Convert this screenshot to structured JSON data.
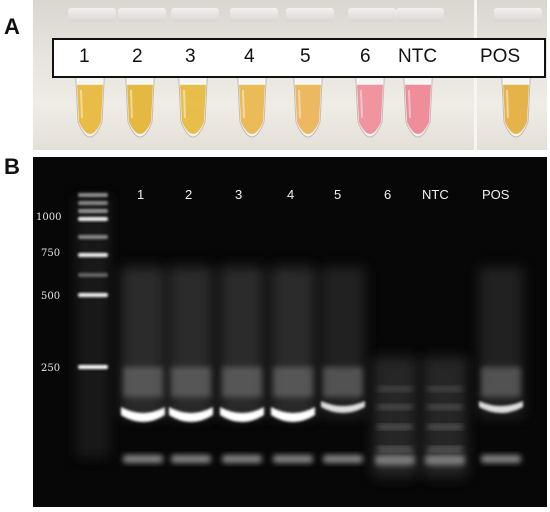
{
  "panel_a": {
    "letter": "A",
    "tubes": [
      {
        "label": "1",
        "color": "#e7b63a"
      },
      {
        "label": "2",
        "color": "#e3b232"
      },
      {
        "label": "3",
        "color": "#e6b83d"
      },
      {
        "label": "4",
        "color": "#e9b54a"
      },
      {
        "label": "5",
        "color": "#ebb255"
      },
      {
        "label": "6",
        "color": "#ef8b98"
      },
      {
        "label": "NTC",
        "color": "#ee8393"
      },
      {
        "label": "POS",
        "color": "#e4ad3c"
      }
    ]
  },
  "panel_b": {
    "letter": "B",
    "ladder_sizes": [
      "1000",
      "750",
      "500",
      "250"
    ],
    "lanes": [
      {
        "label": "1",
        "pattern": "strong"
      },
      {
        "label": "2",
        "pattern": "strong"
      },
      {
        "label": "3",
        "pattern": "strong"
      },
      {
        "label": "4",
        "pattern": "strong"
      },
      {
        "label": "5",
        "pattern": "medium"
      },
      {
        "label": "6",
        "pattern": "smear"
      },
      {
        "label": "NTC",
        "pattern": "smear"
      },
      {
        "label": "POS",
        "pattern": "medium"
      }
    ]
  }
}
